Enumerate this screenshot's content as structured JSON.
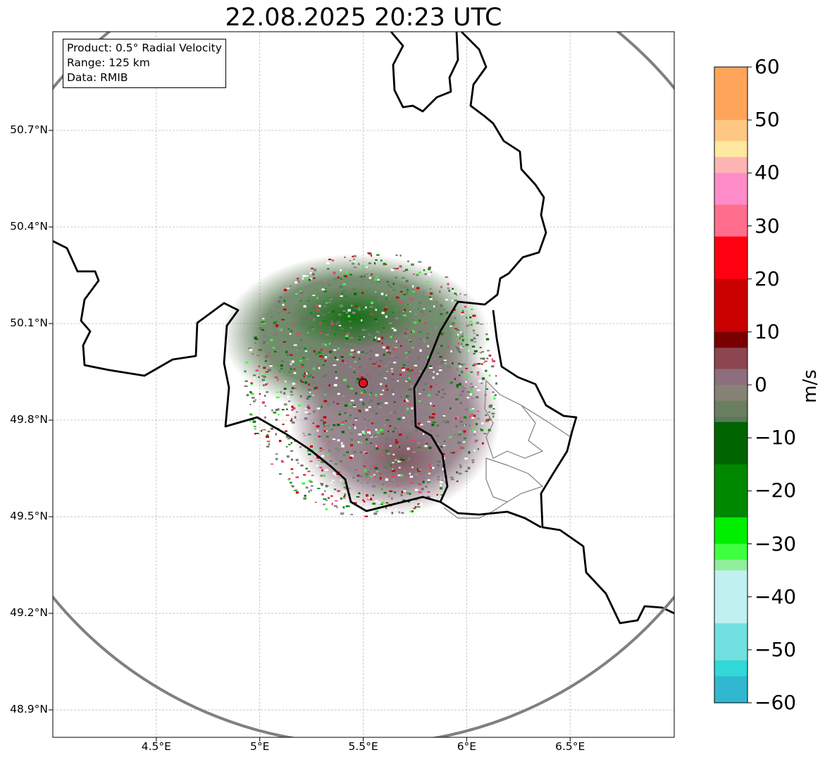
{
  "map": {
    "title": "22.08.2025 20:23 UTC",
    "info_box": {
      "product": "Product: 0.5° Radial Velocity",
      "range": "Range: 125 km",
      "data": "Data: RMIB"
    },
    "radar_site": {
      "lon": 5.5,
      "lat": 49.915
    },
    "extent": {
      "lon": [
        4.0,
        7.0
      ],
      "lat": [
        48.8,
        51.0
      ]
    },
    "lat_ticks": [
      "50.7°N",
      "50.4°N",
      "50.1°N",
      "49.8°N",
      "49.5°N",
      "49.2°N",
      "48.9°N"
    ],
    "lon_ticks": [
      "4.5°E",
      "5°E",
      "5.5°E",
      "6°E",
      "6.5°E"
    ],
    "gridlines": true,
    "range_ring_color": "#808080",
    "border_color": "#000000",
    "site_marker_color": "#e0141e"
  },
  "colorbar": {
    "unit": "m/s",
    "range": [
      -60,
      60
    ],
    "ticks": [
      "60",
      "50",
      "40",
      "30",
      "20",
      "10",
      "0",
      "−10",
      "−20",
      "−30",
      "−40",
      "−50",
      "−60"
    ],
    "stops": [
      {
        "v": 60,
        "color": "#ffa55a"
      },
      {
        "v": 50,
        "color": "#ffc882"
      },
      {
        "v": 46,
        "color": "#ffe8a0"
      },
      {
        "v": 43,
        "color": "#ffb4b4"
      },
      {
        "v": 40,
        "color": "#ff8cc8"
      },
      {
        "v": 34,
        "color": "#ff6e8c"
      },
      {
        "v": 28,
        "color": "#ff0010"
      },
      {
        "v": 20,
        "color": "#c80000"
      },
      {
        "v": 10,
        "color": "#780000"
      },
      {
        "v": 7,
        "color": "#8c4650"
      },
      {
        "v": 3,
        "color": "#8c6e7e"
      },
      {
        "v": 0,
        "color": "#868276"
      },
      {
        "v": -3,
        "color": "#6a7e60"
      },
      {
        "v": -6,
        "color": "#5a7a58"
      },
      {
        "v": -7,
        "color": "#006400"
      },
      {
        "v": -15,
        "color": "#008800"
      },
      {
        "v": -25,
        "color": "#00ee00"
      },
      {
        "v": -30,
        "color": "#40ff40"
      },
      {
        "v": -33,
        "color": "#90ee98"
      },
      {
        "v": -35,
        "color": "#c0f0f0"
      },
      {
        "v": -45,
        "color": "#70e0e0"
      },
      {
        "v": -52,
        "color": "#30d8d8"
      },
      {
        "v": -55,
        "color": "#30b8d0"
      },
      {
        "v": -60,
        "color": "#2078c8"
      }
    ]
  }
}
